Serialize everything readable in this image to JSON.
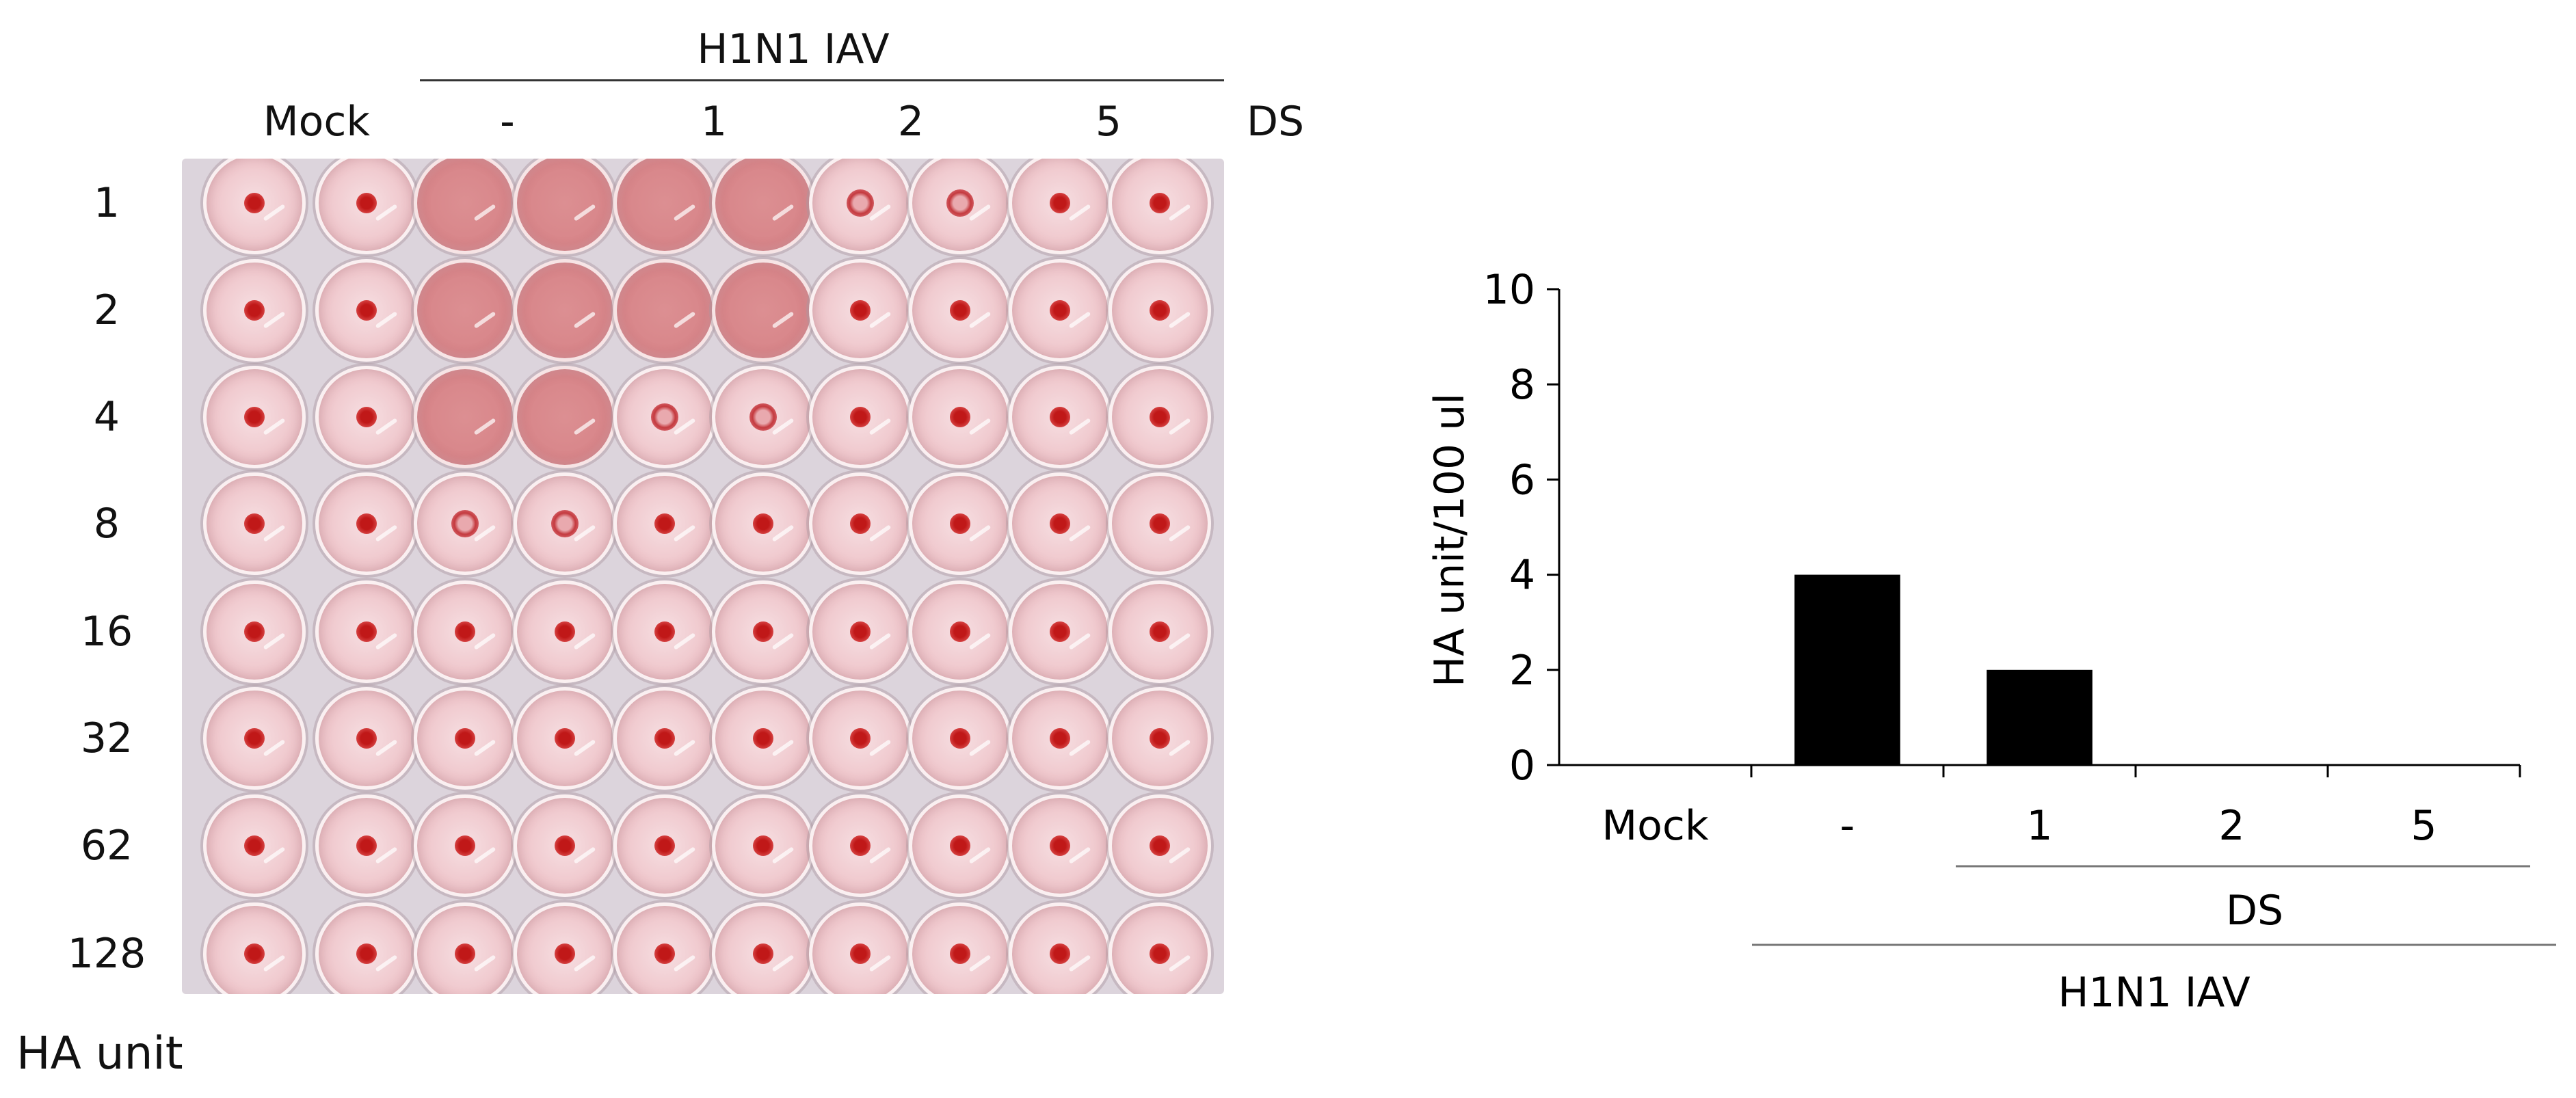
{
  "hi_test": {
    "header_virus": "H1N1  IAV",
    "column_groups": [
      "Mock",
      "-",
      "1",
      "2",
      "5"
    ],
    "ds_label": "DS",
    "row_labels": [
      "1",
      "2",
      "4",
      "8",
      "16",
      "32",
      "62",
      "128"
    ],
    "footer_label": "HA unit",
    "wells": [
      [
        "button",
        "button",
        "diffuse",
        "diffuse",
        "diffuse",
        "diffuse",
        "ring",
        "ring",
        "button",
        "button"
      ],
      [
        "button",
        "button",
        "diffuse",
        "diffuse",
        "diffuse",
        "diffuse",
        "button",
        "button",
        "button",
        "button"
      ],
      [
        "button",
        "button",
        "diffuse",
        "diffuse",
        "ring",
        "ring",
        "button",
        "button",
        "button",
        "button"
      ],
      [
        "button",
        "button",
        "ring",
        "ring",
        "button",
        "button",
        "button",
        "button",
        "button",
        "button"
      ],
      [
        "button",
        "button",
        "button",
        "button",
        "button",
        "button",
        "button",
        "button",
        "button",
        "button"
      ],
      [
        "button",
        "button",
        "button",
        "button",
        "button",
        "button",
        "button",
        "button",
        "button",
        "button"
      ],
      [
        "button",
        "button",
        "button",
        "button",
        "button",
        "button",
        "button",
        "button",
        "button",
        "button"
      ],
      [
        "button",
        "button",
        "button",
        "button",
        "button",
        "button",
        "button",
        "button",
        "button",
        "button"
      ]
    ]
  },
  "chart_data": {
    "type": "bar",
    "categories": [
      "Mock",
      "-",
      "1",
      "2",
      "5"
    ],
    "values": [
      0,
      4,
      2,
      0,
      0
    ],
    "ylabel": "HA unit/100 ul",
    "ylim": [
      0,
      10
    ],
    "yticks": [
      "0",
      "2",
      "4",
      "6",
      "8",
      "10"
    ],
    "group_ds_label": "DS",
    "group_virus_label": "H1N1  IAV",
    "bar_color": "#000000",
    "grid": false
  }
}
